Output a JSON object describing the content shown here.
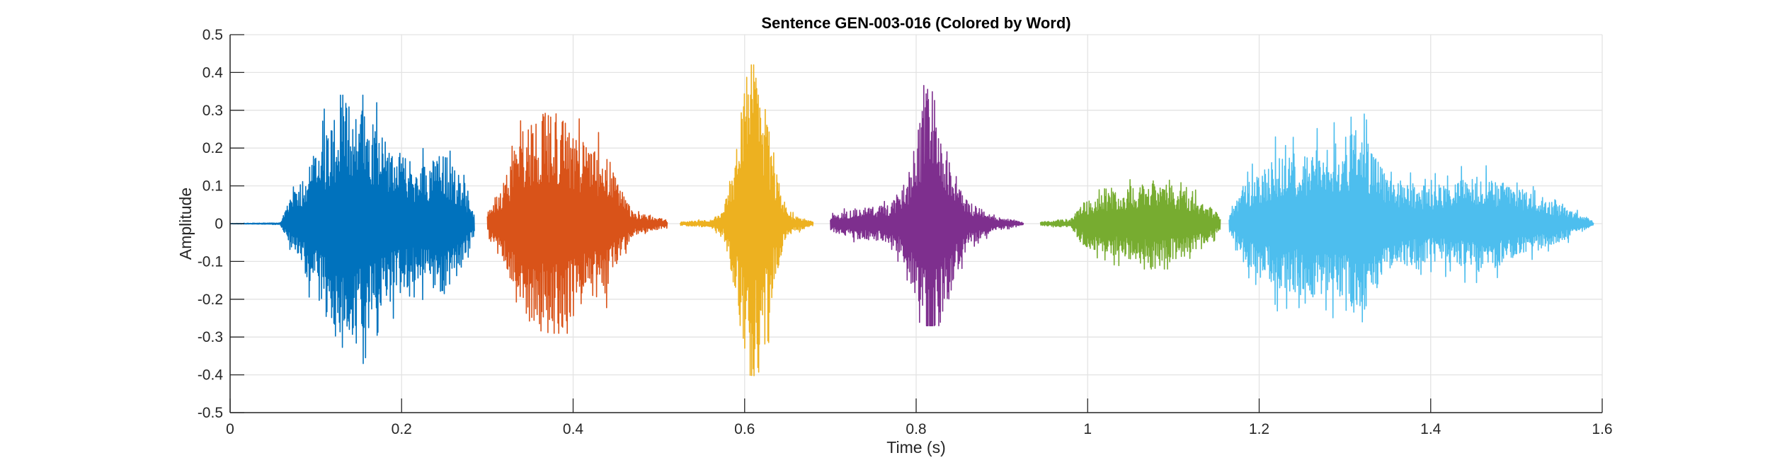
{
  "chart_data": {
    "type": "line",
    "title": "Sentence GEN-003-016 (Colored by Word)",
    "xlabel": "Time (s)",
    "ylabel": "Amplitude",
    "xlim": [
      0,
      1.6
    ],
    "ylim": [
      -0.5,
      0.5
    ],
    "xticks": [
      "0",
      "0.2",
      "0.4",
      "0.6",
      "0.8",
      "1",
      "1.2",
      "1.4",
      "1.6"
    ],
    "yticks": [
      "-0.5",
      "-0.4",
      "-0.3",
      "-0.2",
      "-0.1",
      "0",
      "0.1",
      "0.2",
      "0.3",
      "0.4",
      "0.5"
    ],
    "grid": true,
    "series": [
      {
        "color": "#0072BD",
        "t_start": 0.0,
        "t_end": 0.285,
        "max": 0.34,
        "min": -0.37,
        "envelope": [
          [
            0.0,
            0.0005
          ],
          [
            0.058,
            0.002
          ],
          [
            0.065,
            0.04
          ],
          [
            0.09,
            0.15
          ],
          [
            0.13,
            0.33
          ],
          [
            0.155,
            0.32
          ],
          [
            0.19,
            0.2
          ],
          [
            0.22,
            0.15
          ],
          [
            0.25,
            0.19
          ],
          [
            0.27,
            0.12
          ],
          [
            0.285,
            0.02
          ]
        ]
      },
      {
        "color": "#D95319",
        "t_start": 0.3,
        "t_end": 0.51,
        "max": 0.31,
        "min": -0.29,
        "envelope": [
          [
            0.3,
            0.03
          ],
          [
            0.32,
            0.12
          ],
          [
            0.345,
            0.28
          ],
          [
            0.38,
            0.3
          ],
          [
            0.41,
            0.22
          ],
          [
            0.44,
            0.18
          ],
          [
            0.455,
            0.1
          ],
          [
            0.47,
            0.03
          ],
          [
            0.51,
            0.01
          ]
        ]
      },
      {
        "color": "#EDB120",
        "t_start": 0.525,
        "t_end": 0.68,
        "max": 0.42,
        "min": -0.46,
        "envelope": [
          [
            0.525,
            0.005
          ],
          [
            0.56,
            0.01
          ],
          [
            0.575,
            0.03
          ],
          [
            0.59,
            0.2
          ],
          [
            0.605,
            0.44
          ],
          [
            0.62,
            0.38
          ],
          [
            0.635,
            0.15
          ],
          [
            0.65,
            0.03
          ],
          [
            0.68,
            0.005
          ]
        ]
      },
      {
        "color": "#7E2F8E",
        "t_start": 0.7,
        "t_end": 0.925,
        "max": 0.42,
        "min": -0.27,
        "envelope": [
          [
            0.7,
            0.02
          ],
          [
            0.73,
            0.04
          ],
          [
            0.77,
            0.05
          ],
          [
            0.79,
            0.12
          ],
          [
            0.815,
            0.38
          ],
          [
            0.835,
            0.22
          ],
          [
            0.86,
            0.06
          ],
          [
            0.89,
            0.02
          ],
          [
            0.925,
            0.003
          ]
        ]
      },
      {
        "color": "#77AC30",
        "t_start": 0.945,
        "t_end": 1.155,
        "max": 0.13,
        "min": -0.12,
        "envelope": [
          [
            0.945,
            0.005
          ],
          [
            0.98,
            0.01
          ],
          [
            0.995,
            0.06
          ],
          [
            1.02,
            0.08
          ],
          [
            1.05,
            0.1
          ],
          [
            1.08,
            0.12
          ],
          [
            1.11,
            0.09
          ],
          [
            1.14,
            0.05
          ],
          [
            1.155,
            0.02
          ]
        ]
      },
      {
        "color": "#4DBEEE",
        "t_start": 1.165,
        "t_end": 1.59,
        "max": 0.29,
        "min": -0.26,
        "envelope": [
          [
            1.165,
            0.02
          ],
          [
            1.18,
            0.1
          ],
          [
            1.22,
            0.18
          ],
          [
            1.28,
            0.2
          ],
          [
            1.32,
            0.26
          ],
          [
            1.35,
            0.12
          ],
          [
            1.4,
            0.1
          ],
          [
            1.46,
            0.13
          ],
          [
            1.52,
            0.08
          ],
          [
            1.56,
            0.04
          ],
          [
            1.59,
            0.005
          ]
        ]
      }
    ]
  }
}
